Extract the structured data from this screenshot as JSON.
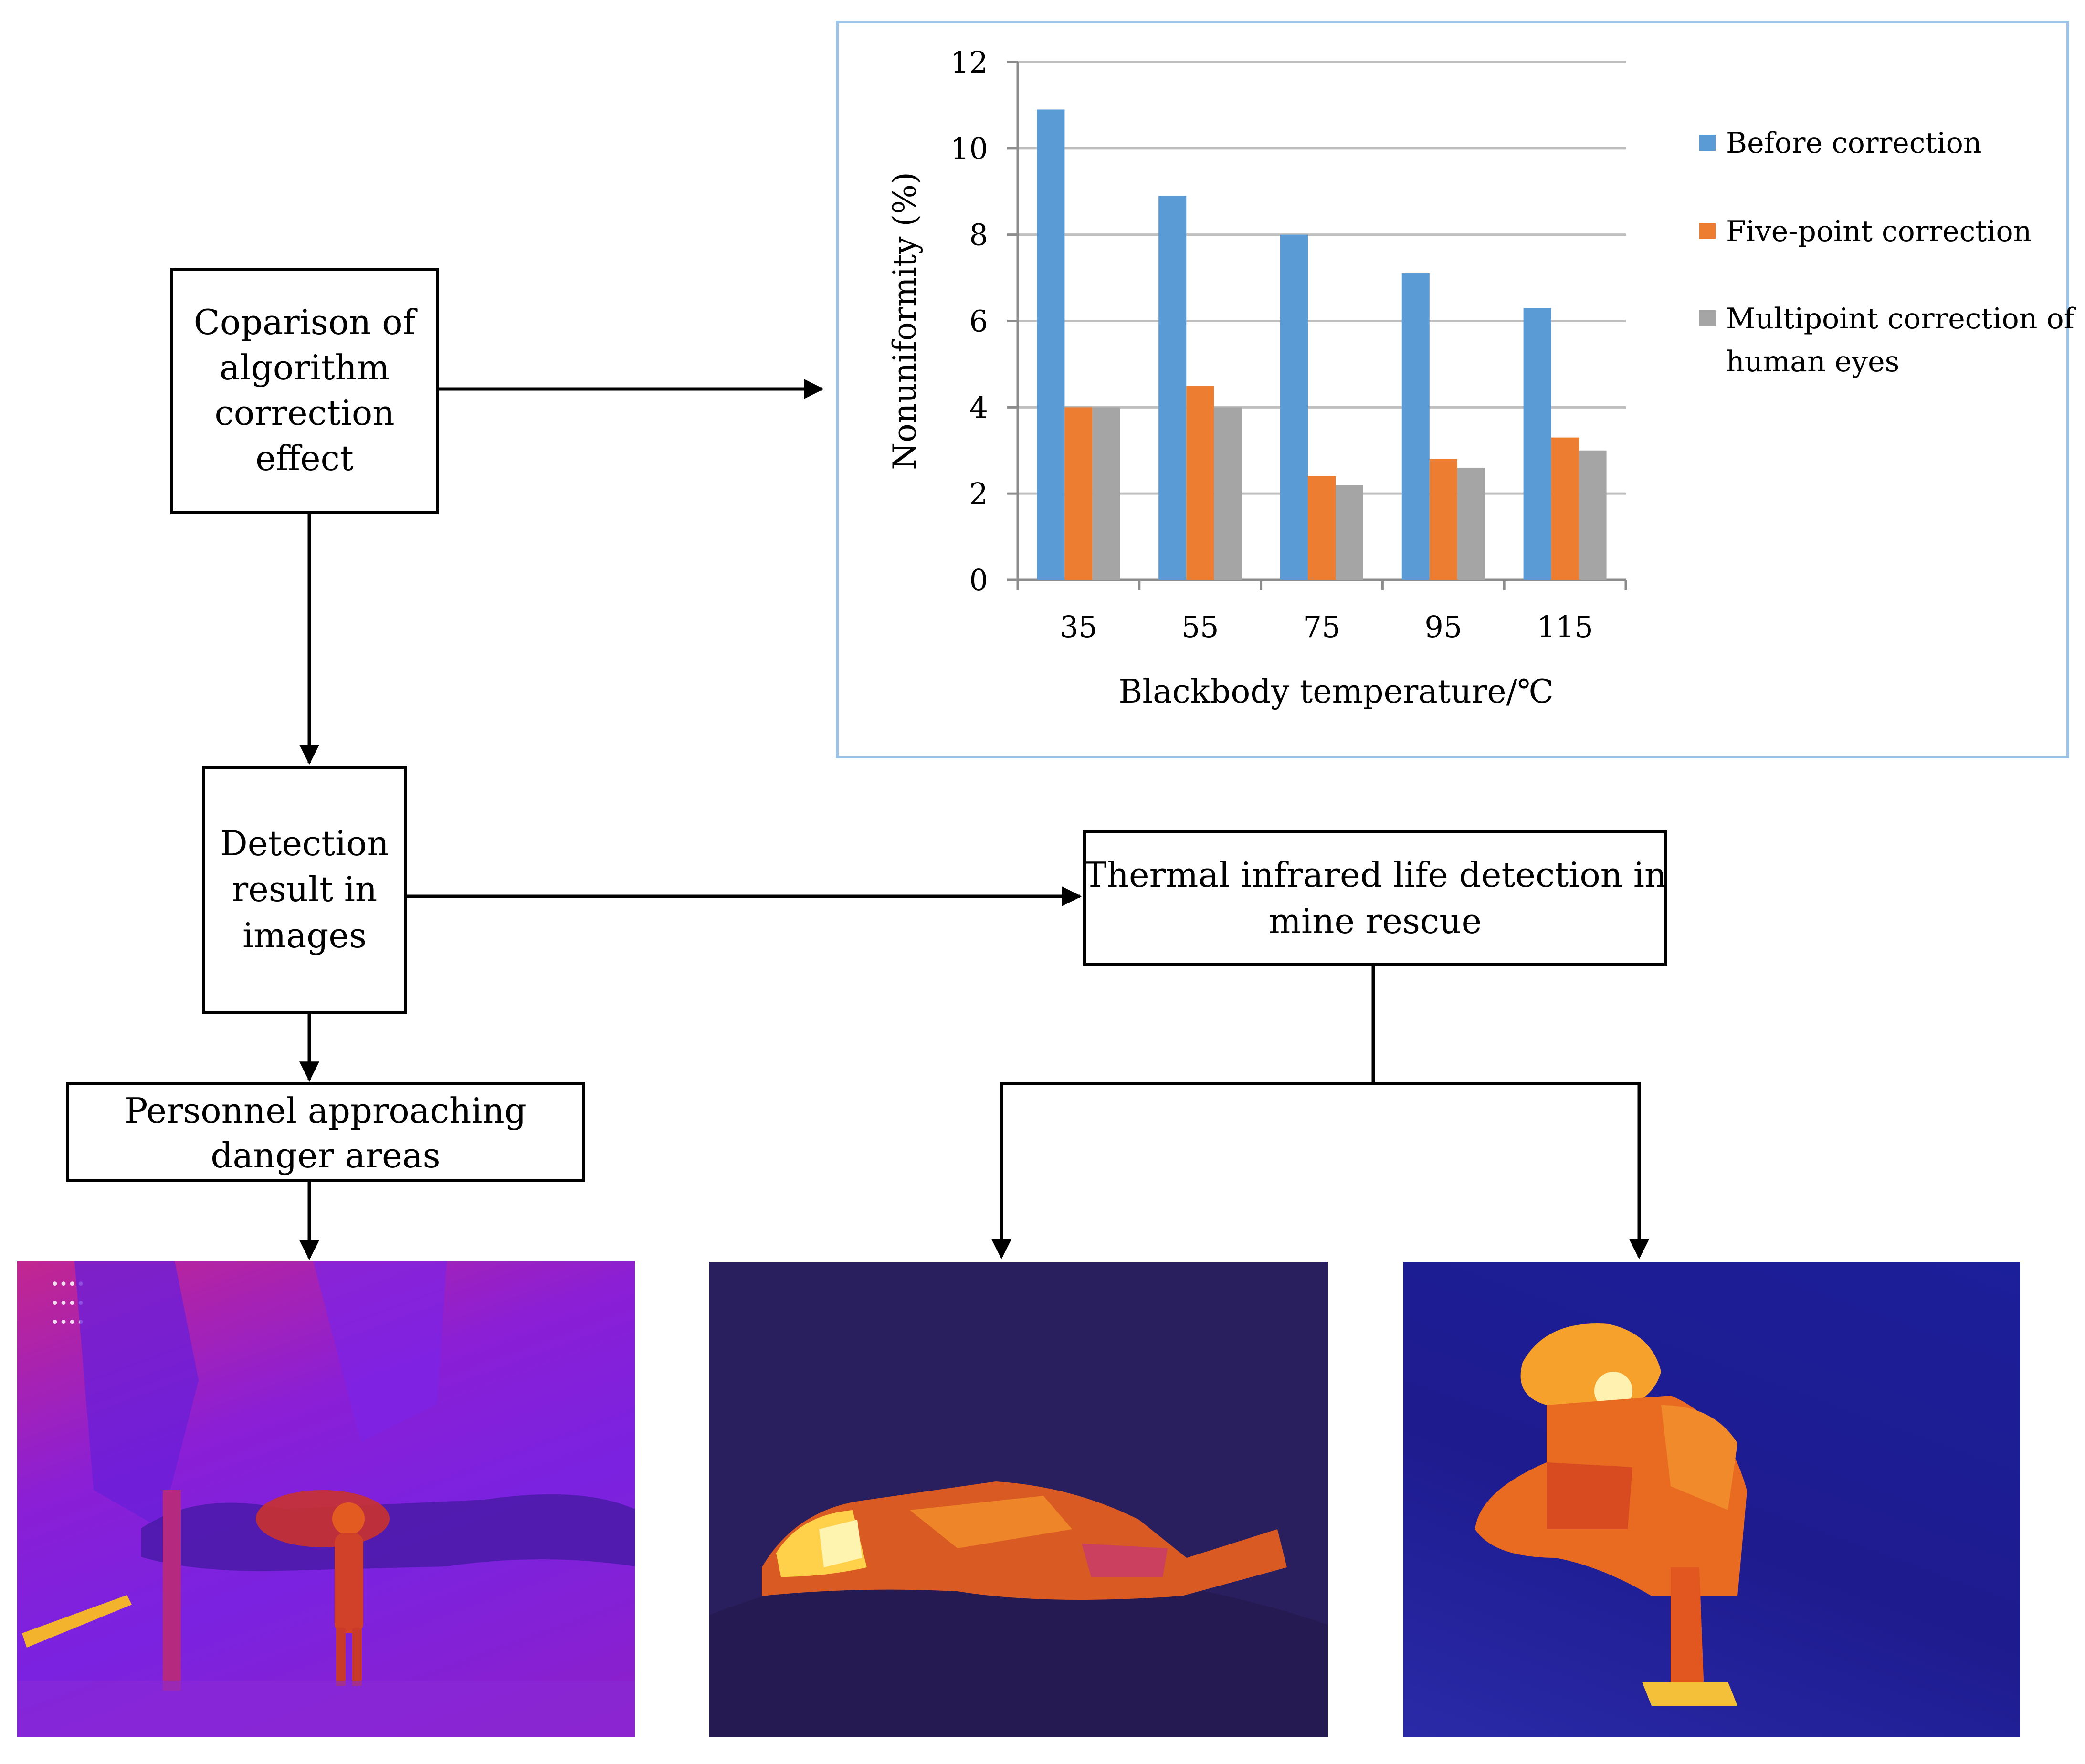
{
  "boxes": {
    "comparison": [
      "Coparison of",
      "algorithm",
      "correction",
      "effect"
    ],
    "detection": [
      "Detection",
      "result in",
      "images"
    ],
    "personnel": [
      "Personnel approaching",
      "danger areas"
    ],
    "thermal": [
      "Thermal infrared life detection in",
      "mine rescue"
    ]
  },
  "chart_data": {
    "type": "bar",
    "categories": [
      "35",
      "55",
      "75",
      "95",
      "115"
    ],
    "series": [
      {
        "name": "Before correction",
        "values": [
          10.9,
          8.9,
          8.0,
          7.1,
          6.3
        ],
        "color": "#5b9bd5"
      },
      {
        "name": "Five-point correction",
        "values": [
          4.0,
          4.5,
          2.4,
          2.8,
          3.3
        ],
        "color": "#ed7d31"
      },
      {
        "name": "Multipoint correction of human eyes",
        "values": [
          4.0,
          4.0,
          2.2,
          2.6,
          3.0
        ],
        "color": "#a5a5a5"
      }
    ],
    "legend_lines": [
      [
        "Before correction"
      ],
      [
        "Five-point correction"
      ],
      [
        "Multipoint correction of",
        "human eyes"
      ]
    ],
    "xlabel": "Blackbody temperature/℃",
    "ylabel": "Nonuniformity (%)",
    "ylim": [
      0,
      12
    ],
    "yticks": [
      "0",
      "2",
      "4",
      "6",
      "8",
      "10",
      "12"
    ],
    "grid": true,
    "legend_position": "right"
  },
  "images": {
    "overlay_text": [
      "••••",
      "••••",
      "••••"
    ]
  },
  "colors": {
    "frame": "#9dc3e6",
    "thermal_1_bg": "#7a22e0",
    "thermal_2_bg": "#2a1f5e",
    "thermal_3_bg": "#1e1b8e"
  }
}
